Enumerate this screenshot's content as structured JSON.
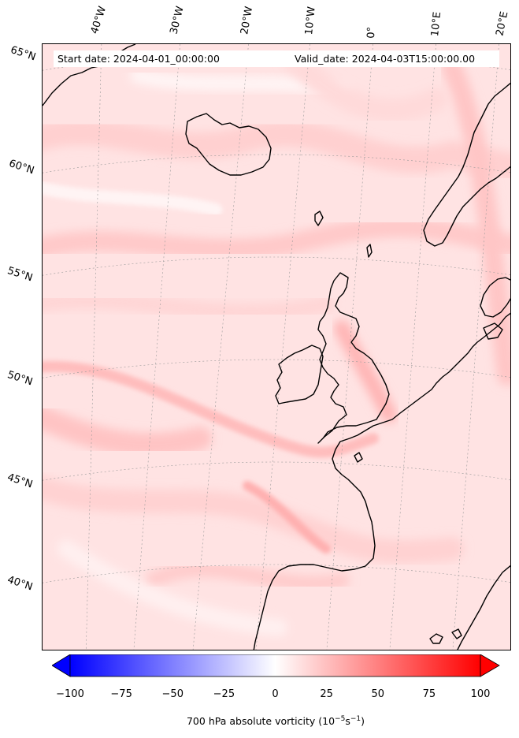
{
  "map": {
    "start_date": "Start date: 2024-04-01_00:00:00",
    "valid_date": "Valid_date: 2024-04-03T15:00:00.00",
    "longitude_labels": [
      "40°W",
      "30°W",
      "20°W",
      "10°W",
      "0°",
      "10°E",
      "20°E"
    ],
    "latitude_labels": [
      "65°N",
      "60°N",
      "55°N",
      "50°N",
      "45°N",
      "40°N"
    ],
    "field": "700 hPa absolute vorticity",
    "coastline_color": "#000000",
    "background_field_color": "#ffe3e3"
  },
  "colorbar": {
    "title": "700 hPa absolute vorticity",
    "unit_prefix": "10",
    "unit_exp1": "−5",
    "unit_mid": "s",
    "unit_exp2": "−1",
    "ticks": [
      "−100",
      "−75",
      "−50",
      "−25",
      "0",
      "25",
      "50",
      "75",
      "100"
    ],
    "range": [
      -100,
      100
    ],
    "colormap": "bwr",
    "low_color": "#0000ff",
    "mid_color": "#ffffff",
    "high_color": "#ff0000",
    "extend": "both"
  }
}
